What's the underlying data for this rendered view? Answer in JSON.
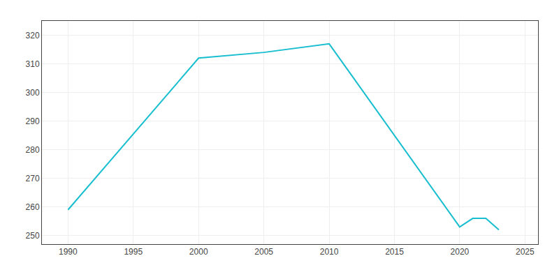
{
  "chart_data": {
    "type": "line",
    "x": [
      1990,
      2000,
      2005,
      2010,
      2020,
      2021,
      2022,
      2023
    ],
    "values": [
      259,
      312,
      314,
      317,
      253,
      256,
      256,
      252
    ],
    "color": "#17becf",
    "xlim": [
      1988,
      2026
    ],
    "ylim": [
      247,
      325
    ],
    "xticks": [
      1990,
      1995,
      2000,
      2005,
      2010,
      2015,
      2020,
      2025
    ],
    "yticks": [
      250,
      260,
      270,
      280,
      290,
      300,
      310,
      320
    ],
    "grid": true
  }
}
